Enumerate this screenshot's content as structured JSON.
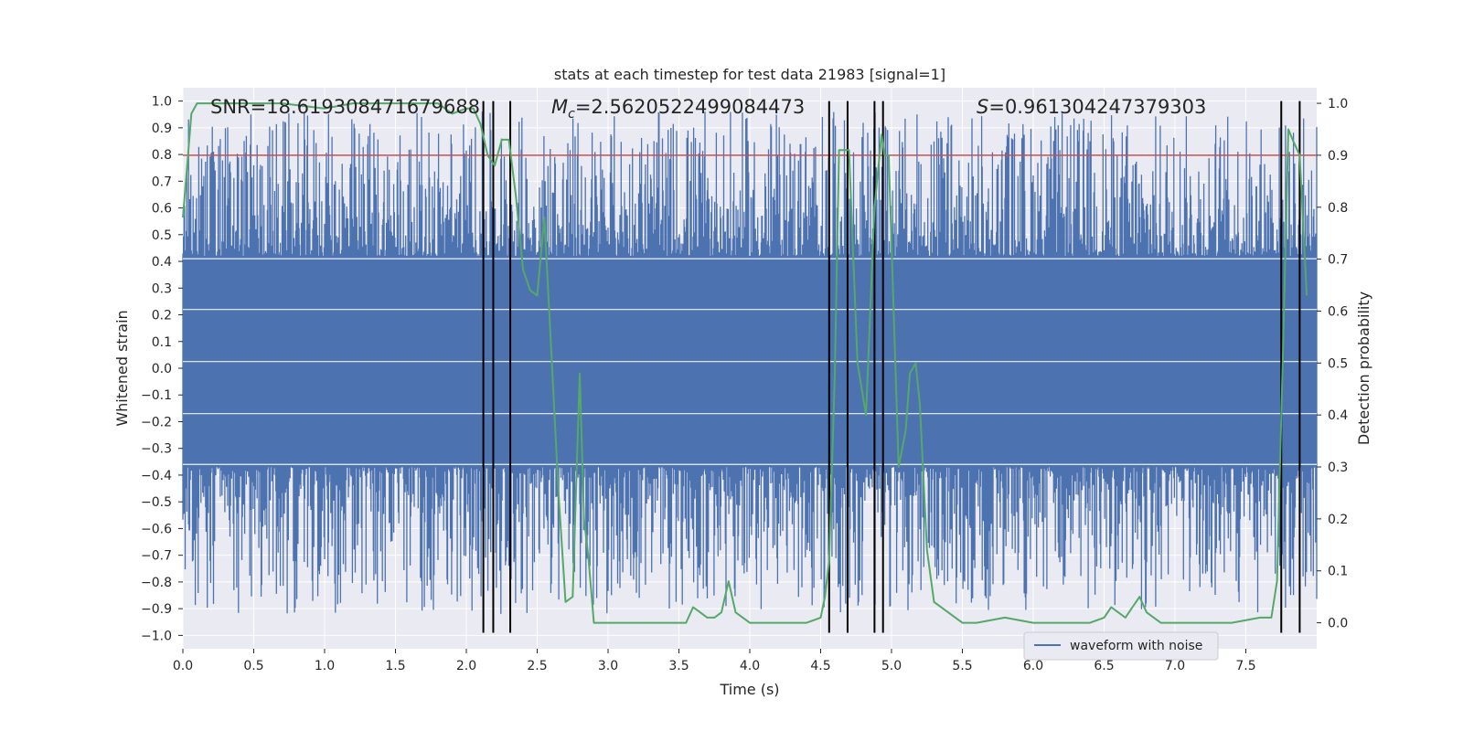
{
  "chart_data": {
    "type": "line",
    "title": "stats at each timestep for test data 21983 [signal=1]",
    "xlabel": "Time (s)",
    "ylabel": "Whitened strain",
    "y2label": "Detection probability",
    "xlim": [
      0.0,
      8.0
    ],
    "ylim": [
      -1.05,
      1.05
    ],
    "y2lim": [
      -0.05,
      1.03
    ],
    "xticks": [
      "0.0",
      "0.5",
      "1.0",
      "1.5",
      "2.0",
      "2.5",
      "3.0",
      "3.5",
      "4.0",
      "4.5",
      "5.0",
      "5.5",
      "6.0",
      "6.5",
      "7.0",
      "7.5"
    ],
    "yticks": [
      "1.0",
      "0.9",
      "0.8",
      "0.7",
      "0.6",
      "0.5",
      "0.4",
      "0.3",
      "0.2",
      "0.1",
      "0.0",
      "-0.1",
      "-0.2",
      "-0.3",
      "-0.4",
      "-0.5",
      "-0.6",
      "-0.7",
      "-0.8",
      "-0.9",
      "-1.0"
    ],
    "y2ticks": [
      "1.0",
      "0.9",
      "0.8",
      "0.7",
      "0.6",
      "0.5",
      "0.4",
      "0.3",
      "0.2",
      "0.1",
      "0.0"
    ],
    "annotations": {
      "snr": "SNR=18.619308471679688",
      "mc_prefix": "M",
      "mc_sub": "c",
      "mc_value": "=2.5620522499084473",
      "s_prefix": "S",
      "s_value": "=0.961304247379303"
    },
    "legend": {
      "label": "waveform with noise",
      "loc": "lower-right"
    },
    "threshold": {
      "y2": 0.9,
      "color": "#c44e52"
    },
    "vlines": [
      2.12,
      2.19,
      2.31,
      4.56,
      4.69,
      4.88,
      4.94,
      7.75,
      7.88
    ],
    "series": [
      {
        "name": "waveform with noise",
        "color": "#4c72b0",
        "envelope": {
          "base_lo": -0.37,
          "base_hi": 0.42,
          "max": 0.99,
          "min": -0.95
        }
      },
      {
        "color": "#55a868",
        "x": [
          0.0,
          0.03,
          0.06,
          0.1,
          0.2,
          0.4,
          0.7,
          1.0,
          1.2,
          1.5,
          1.8,
          1.9,
          2.0,
          2.05,
          2.1,
          2.15,
          2.2,
          2.25,
          2.3,
          2.35,
          2.4,
          2.45,
          2.5,
          2.55,
          2.6,
          2.65,
          2.7,
          2.75,
          2.8,
          2.83,
          2.86,
          2.9,
          2.95,
          3.0,
          3.1,
          3.2,
          3.4,
          3.5,
          3.55,
          3.6,
          3.65,
          3.7,
          3.75,
          3.8,
          3.85,
          3.9,
          4.0,
          4.2,
          4.4,
          4.5,
          4.53,
          4.56,
          4.6,
          4.63,
          4.66,
          4.7,
          4.76,
          4.82,
          4.88,
          4.93,
          4.95,
          4.98,
          5.05,
          5.1,
          5.13,
          5.17,
          5.2,
          5.25,
          5.3,
          5.4,
          5.5,
          5.6,
          5.8,
          6.0,
          6.2,
          6.4,
          6.5,
          6.55,
          6.6,
          6.65,
          6.7,
          6.75,
          6.8,
          6.85,
          6.9,
          7.0,
          7.2,
          7.4,
          7.6,
          7.68,
          7.72,
          7.76,
          7.8,
          7.83,
          7.88,
          7.93
        ],
        "y": [
          0.78,
          0.88,
          0.98,
          1.0,
          1.0,
          1.0,
          1.0,
          0.99,
          1.0,
          1.0,
          1.0,
          0.98,
          0.99,
          0.99,
          0.96,
          0.9,
          0.88,
          0.93,
          0.93,
          0.82,
          0.68,
          0.64,
          0.63,
          0.78,
          0.52,
          0.25,
          0.04,
          0.05,
          0.48,
          0.2,
          0.13,
          0.0,
          0.0,
          0.0,
          0.0,
          0.0,
          0.0,
          0.0,
          0.0,
          0.03,
          0.02,
          0.01,
          0.01,
          0.02,
          0.08,
          0.02,
          0.0,
          0.0,
          0.0,
          0.01,
          0.05,
          0.12,
          0.48,
          0.91,
          0.91,
          0.91,
          0.5,
          0.4,
          0.8,
          0.94,
          0.9,
          0.9,
          0.3,
          0.37,
          0.48,
          0.5,
          0.42,
          0.14,
          0.04,
          0.02,
          0.0,
          0.0,
          0.01,
          0.0,
          0.0,
          0.0,
          0.01,
          0.03,
          0.02,
          0.01,
          0.03,
          0.05,
          0.02,
          0.01,
          0.0,
          0.0,
          0.0,
          0.0,
          0.01,
          0.01,
          0.08,
          0.5,
          0.95,
          0.93,
          0.9,
          0.63
        ]
      }
    ]
  }
}
